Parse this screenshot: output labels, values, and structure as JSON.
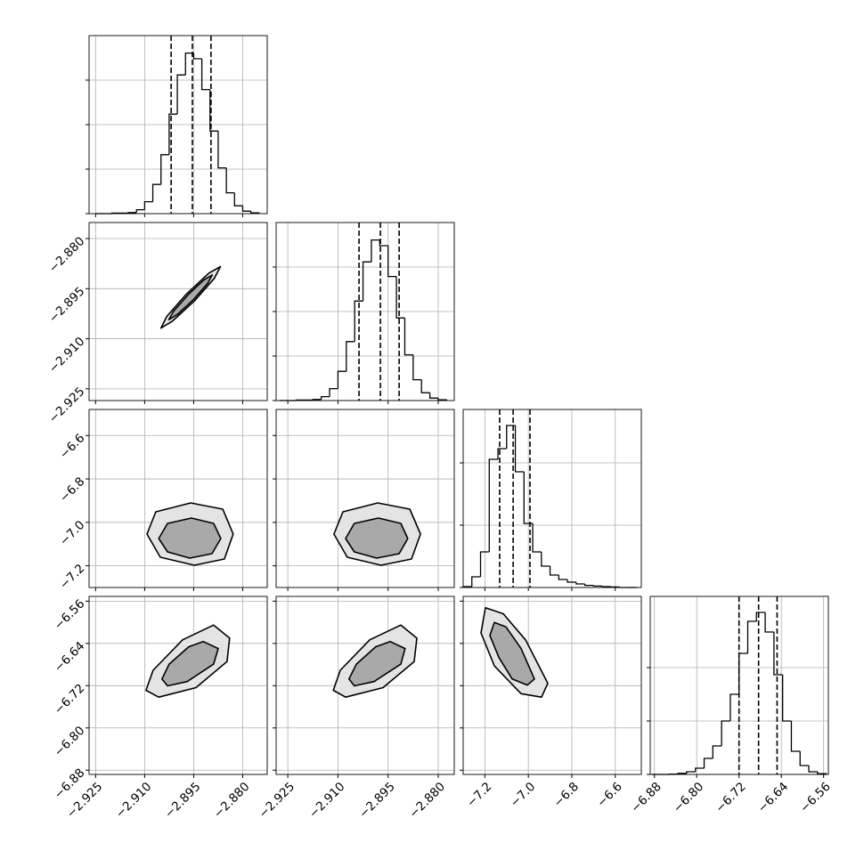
{
  "chart_data": {
    "type": "corner",
    "color": "#000000",
    "grid": true,
    "contour_fills": [
      "#e4e4e4",
      "#a9a9a9"
    ],
    "params": [
      {
        "range": [
          -2.927,
          -2.8725
        ],
        "ticks": [
          {
            "value": -2.925,
            "label": "−2.925"
          },
          {
            "value": -2.91,
            "label": "−2.910"
          },
          {
            "value": -2.895,
            "label": "−2.895"
          },
          {
            "value": -2.88,
            "label": "−2.880"
          }
        ],
        "bins": [
          -2.925,
          -2.9225,
          -2.92,
          -2.9175,
          -2.915,
          -2.9125,
          -2.91,
          -2.9075,
          -2.905,
          -2.9025,
          -2.9,
          -2.8975,
          -2.895,
          -2.8925,
          -2.89,
          -2.8875,
          -2.885,
          -2.8825,
          -2.88,
          -2.8775,
          -2.875
        ],
        "counts": [
          0,
          0,
          3,
          3,
          6,
          22,
          67,
          164,
          331,
          559,
          779,
          902,
          870,
          697,
          464,
          257,
          117,
          44,
          14,
          4
        ],
        "hist_ylim": [
          0,
          1000
        ],
        "hist_yticks": [
          0,
          250,
          500,
          750
        ],
        "quantiles": [
          -2.9019,
          -2.8954,
          -2.8897
        ]
      },
      {
        "range": [
          -2.9285,
          -2.8752
        ],
        "ticks": [
          {
            "value": -2.925,
            "label": "−2.925"
          },
          {
            "value": -2.91,
            "label": "−2.910"
          },
          {
            "value": -2.895,
            "label": "−2.895"
          },
          {
            "value": -2.88,
            "label": "−2.880"
          }
        ],
        "bins": [
          -2.9275,
          -2.925,
          -2.9225,
          -2.92,
          -2.9175,
          -2.915,
          -2.9125,
          -2.91,
          -2.9075,
          -2.905,
          -2.9025,
          -2.9,
          -2.8975,
          -2.895,
          -2.8925,
          -2.89,
          -2.8875,
          -2.885,
          -2.8825,
          -2.88,
          -2.8775
        ],
        "counts": [
          0,
          0,
          3,
          3,
          6,
          22,
          67,
          164,
          331,
          559,
          779,
          902,
          870,
          697,
          464,
          257,
          117,
          44,
          14,
          4
        ],
        "hist_ylim": [
          0,
          1000
        ],
        "hist_yticks": [
          0,
          250,
          500,
          750
        ],
        "quantiles": [
          -2.9037,
          -2.8973,
          -2.8917
        ]
      },
      {
        "range": [
          -7.3,
          -6.48
        ],
        "ticks": [
          {
            "value": -7.2,
            "label": "−7.2"
          },
          {
            "value": -7.0,
            "label": "−7.0"
          },
          {
            "value": -6.8,
            "label": "−6.8"
          },
          {
            "value": -6.6,
            "label": "−6.6"
          }
        ],
        "bins": [
          -7.3,
          -7.26,
          -7.22,
          -7.18,
          -7.14,
          -7.1,
          -7.06,
          -7.02,
          -6.98,
          -6.94,
          -6.9,
          -6.86,
          -6.82,
          -6.78,
          -6.74,
          -6.7,
          -6.66,
          -6.62,
          -6.58,
          -6.54,
          -6.5
        ],
        "counts": [
          5,
          60,
          200,
          720,
          780,
          910,
          650,
          360,
          200,
          120,
          70,
          45,
          30,
          20,
          12,
          8,
          5,
          3,
          0,
          0
        ],
        "hist_ylim": [
          0,
          1000
        ],
        "hist_yticks": [
          0,
          350,
          700
        ],
        "quantiles": [
          -7.132,
          -7.07,
          -6.9925
        ]
      },
      {
        "range": [
          -6.888,
          -6.551
        ],
        "ticks": [
          {
            "value": -6.88,
            "label": "−6.88"
          },
          {
            "value": -6.8,
            "label": "−6.80"
          },
          {
            "value": -6.72,
            "label": "−6.72"
          },
          {
            "value": -6.64,
            "label": "−6.64"
          },
          {
            "value": -6.56,
            "label": "−6.56"
          }
        ],
        "bins": [
          -6.885,
          -6.8685,
          -6.852,
          -6.8355,
          -6.819,
          -6.8025,
          -6.786,
          -6.7695,
          -6.753,
          -6.7365,
          -6.72,
          -6.7035,
          -6.687,
          -6.6705,
          -6.654,
          -6.6375,
          -6.621,
          -6.6045,
          -6.588,
          -6.5715,
          -6.555
        ],
        "counts": [
          0,
          0,
          2,
          6,
          15,
          35,
          90,
          160,
          300,
          450,
          680,
          860,
          910,
          800,
          560,
          300,
          130,
          50,
          15,
          4
        ],
        "hist_ylim": [
          0,
          1000
        ],
        "hist_yticks": [
          0,
          300,
          600
        ],
        "quantiles": [
          -6.72,
          -6.683,
          -6.648
        ]
      }
    ],
    "pairs": [
      {
        "contours": [
          [
            [
              -2.8868,
              -2.8884
            ],
            [
              -2.8887,
              -2.8919
            ],
            [
              -2.8948,
              -2.8987
            ],
            [
              -2.9016,
              -2.9048
            ],
            [
              -2.905,
              -2.9068
            ],
            [
              -2.9032,
              -2.9033
            ],
            [
              -2.8971,
              -2.8965
            ],
            [
              -2.8903,
              -2.8903
            ]
          ],
          [
            [
              -2.8893,
              -2.8909
            ],
            [
              -2.8907,
              -2.8934
            ],
            [
              -2.8951,
              -2.8983
            ],
            [
              -2.9001,
              -2.9028
            ],
            [
              -2.9026,
              -2.9043
            ],
            [
              -2.9012,
              -2.9018
            ],
            [
              -2.8967,
              -2.8968
            ],
            [
              -2.8918,
              -2.8923
            ]
          ]
        ]
      },
      {
        "contours": [
          [
            [
              -2.8959,
              -6.9105
            ],
            [
              -2.8861,
              -6.9392
            ],
            [
              -2.8829,
              -7.054
            ],
            [
              -2.8856,
              -7.1688
            ],
            [
              -2.8948,
              -7.1975
            ],
            [
              -2.9052,
              -7.1606
            ],
            [
              -2.9093,
              -7.054
            ],
            [
              -2.9066,
              -6.9515
            ]
          ],
          [
            [
              -2.8957,
              -6.9802
            ],
            [
              -2.8889,
              -7.0048
            ],
            [
              -2.8867,
              -7.0745
            ],
            [
              -2.8894,
              -7.1442
            ],
            [
              -2.8962,
              -7.1647
            ],
            [
              -2.903,
              -7.136
            ],
            [
              -2.9057,
              -7.0745
            ],
            [
              -2.903,
              -7.0048
            ]
          ]
        ]
      },
      {
        "contours": [
          [
            [
              -2.8981,
              -6.9105
            ],
            [
              -2.8885,
              -6.9392
            ],
            [
              -2.8853,
              -7.054
            ],
            [
              -2.888,
              -7.1688
            ],
            [
              -2.8971,
              -7.1975
            ],
            [
              -2.9072,
              -7.1606
            ],
            [
              -2.9112,
              -7.054
            ],
            [
              -2.9085,
              -6.9515
            ]
          ],
          [
            [
              -2.8979,
              -6.9802
            ],
            [
              -2.8912,
              -7.0048
            ],
            [
              -2.8891,
              -7.0745
            ],
            [
              -2.8917,
              -7.1442
            ],
            [
              -2.8984,
              -7.1647
            ],
            [
              -2.9051,
              -7.136
            ],
            [
              -2.9077,
              -7.0745
            ],
            [
              -2.9051,
              -7.0048
            ]
          ]
        ]
      },
      {
        "contours": [
          [
            [
              -2.8889,
              -6.6053
            ],
            [
              -2.884,
              -6.63
            ],
            [
              -2.8848,
              -6.6744
            ],
            [
              -2.8943,
              -6.7237
            ],
            [
              -2.9057,
              -6.7418
            ],
            [
              -2.9096,
              -6.7287
            ],
            [
              -2.9074,
              -6.6908
            ],
            [
              -2.8984,
              -6.6333
            ]
          ],
          [
            [
              -2.8921,
              -6.6365
            ],
            [
              -2.8875,
              -6.6497
            ],
            [
              -2.8889,
              -6.6793
            ],
            [
              -2.897,
              -6.7122
            ],
            [
              -2.903,
              -6.7204
            ],
            [
              -2.9047,
              -6.7073
            ],
            [
              -2.9025,
              -6.6793
            ],
            [
              -2.8965,
              -6.6464
            ]
          ]
        ]
      },
      {
        "contours": [
          [
            [
              -2.8912,
              -6.6053
            ],
            [
              -2.8864,
              -6.63
            ],
            [
              -2.8872,
              -6.6744
            ],
            [
              -2.8965,
              -6.7237
            ],
            [
              -2.9077,
              -6.7418
            ],
            [
              -2.9114,
              -6.7287
            ],
            [
              -2.9093,
              -6.6908
            ],
            [
              -2.9005,
              -6.6333
            ]
          ],
          [
            [
              -2.8944,
              -6.6365
            ],
            [
              -2.8899,
              -6.6497
            ],
            [
              -2.8912,
              -6.6793
            ],
            [
              -2.8992,
              -6.7122
            ],
            [
              -2.9051,
              -6.7204
            ],
            [
              -2.9067,
              -6.7073
            ],
            [
              -2.9045,
              -6.6793
            ],
            [
              -2.8987,
              -6.6464
            ]
          ]
        ]
      },
      {
        "contours": [
          [
            [
              -7.1975,
              -6.5724
            ],
            [
              -7.1155,
              -6.5839
            ],
            [
              -7.013,
              -6.6333
            ],
            [
              -6.9105,
              -6.7155
            ],
            [
              -6.9392,
              -6.7418
            ],
            [
              -7.0335,
              -6.7352
            ],
            [
              -7.1565,
              -6.6826
            ],
            [
              -7.218,
              -6.6201
            ]
          ],
          [
            [
              -7.1565,
              -6.6004
            ],
            [
              -7.1032,
              -6.6086
            ],
            [
              -7.0335,
              -6.6497
            ],
            [
              -6.972,
              -6.7073
            ],
            [
              -7.0048,
              -6.7188
            ],
            [
              -7.0745,
              -6.7073
            ],
            [
              -7.136,
              -6.6662
            ],
            [
              -7.177,
              -6.625
            ]
          ]
        ]
      }
    ]
  }
}
